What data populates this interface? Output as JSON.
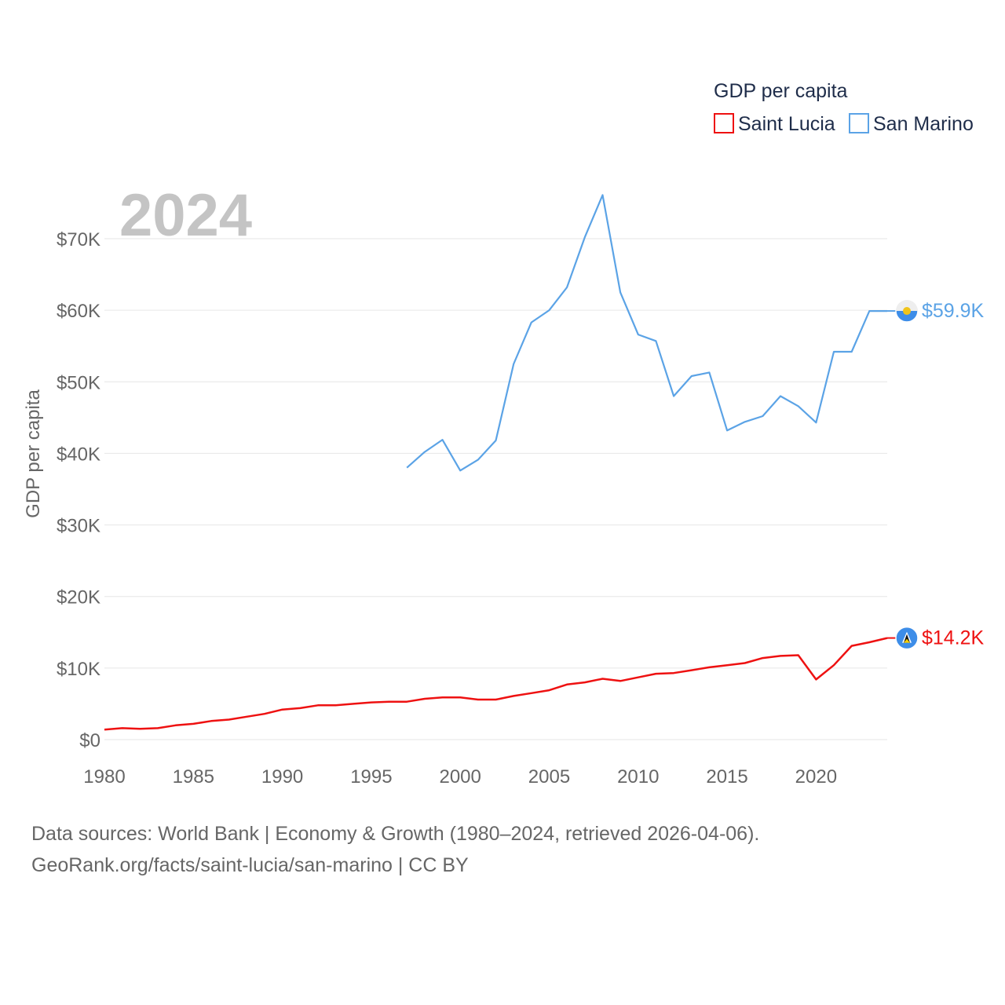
{
  "chart_data": {
    "type": "line",
    "legend_title": "GDP per capita",
    "ylabel": "GDP per capita",
    "year_label": "2024",
    "xlim": [
      1980,
      2024
    ],
    "ylim": [
      0,
      76000
    ],
    "x_ticks": [
      1980,
      1985,
      1990,
      1995,
      2000,
      2005,
      2010,
      2015,
      2020
    ],
    "y_ticks": [
      0,
      10000,
      20000,
      30000,
      40000,
      50000,
      60000,
      70000
    ],
    "y_tick_labels": [
      "$0",
      "$10K",
      "$20K",
      "$30K",
      "$40K",
      "$50K",
      "$60K",
      "$70K"
    ],
    "series": [
      {
        "name": "Saint Lucia",
        "color": "#ee1111",
        "end_label": "$14.2K",
        "marker_icon": "saint-lucia-flag-icon",
        "x": [
          1980,
          1981,
          1982,
          1983,
          1984,
          1985,
          1986,
          1987,
          1988,
          1989,
          1990,
          1991,
          1992,
          1993,
          1994,
          1995,
          1996,
          1997,
          1998,
          1999,
          2000,
          2001,
          2002,
          2003,
          2004,
          2005,
          2006,
          2007,
          2008,
          2009,
          2010,
          2011,
          2012,
          2013,
          2014,
          2015,
          2016,
          2017,
          2018,
          2019,
          2020,
          2021,
          2022,
          2023,
          2024
        ],
        "values": [
          1400,
          1600,
          1500,
          1600,
          2000,
          2200,
          2600,
          2800,
          3200,
          3600,
          4200,
          4400,
          4800,
          4800,
          5000,
          5200,
          5300,
          5300,
          5700,
          5900,
          5900,
          5600,
          5600,
          6100,
          6500,
          6900,
          7700,
          8000,
          8500,
          8200,
          8700,
          9200,
          9300,
          9700,
          10100,
          10400,
          10700,
          11400,
          11700,
          11800,
          8400,
          10400,
          13100,
          13600,
          14200
        ]
      },
      {
        "name": "San Marino",
        "color": "#5ba3e6",
        "end_label": "$59.9K",
        "marker_icon": "san-marino-flag-icon",
        "x": [
          1997,
          1998,
          1999,
          2000,
          2001,
          2002,
          2003,
          2004,
          2005,
          2006,
          2007,
          2008,
          2009,
          2010,
          2011,
          2012,
          2013,
          2014,
          2015,
          2016,
          2017,
          2018,
          2019,
          2020,
          2021,
          2022,
          2023,
          2024
        ],
        "values": [
          38000,
          40200,
          41900,
          37600,
          39100,
          41800,
          52500,
          58300,
          60000,
          63200,
          70200,
          76100,
          62500,
          56600,
          55700,
          48000,
          50800,
          51300,
          43200,
          44400,
          45200,
          48000,
          46600,
          44300,
          54200,
          54200,
          59900,
          59900
        ]
      }
    ]
  },
  "source": {
    "line1": "Data sources: World Bank | Economy & Growth (1980–2024, retrieved 2026-04-06).",
    "line2": "GeoRank.org/facts/saint-lucia/san-marino | CC BY"
  }
}
